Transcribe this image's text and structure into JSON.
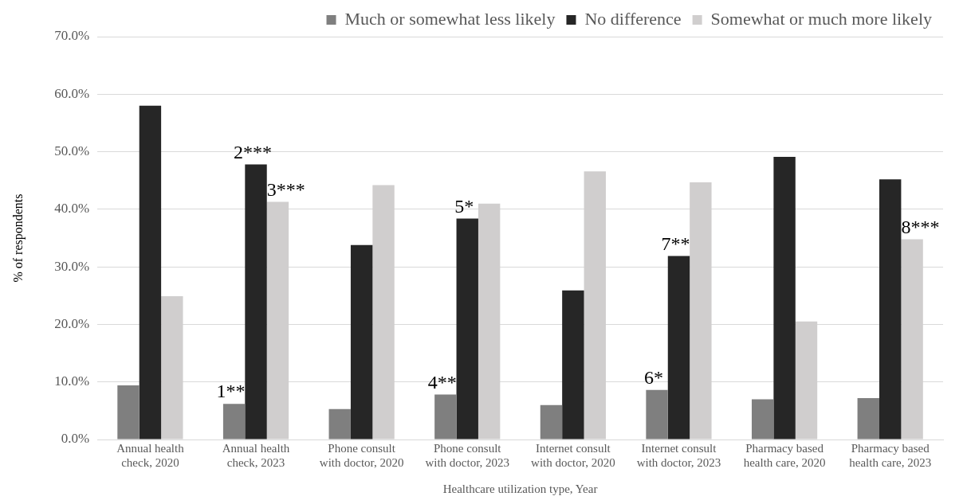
{
  "chart_data": {
    "type": "bar",
    "xlabel": "Healthcare utilization type, Year",
    "ylabel": "% of respondents",
    "categories": [
      "Annual health check, 2020",
      "Annual health check, 2023",
      "Phone consult with doctor, 2020",
      "Phone consult with doctor, 2023",
      "Internet consult with doctor, 2020",
      "Internet consult with doctor, 2023",
      "Pharmacy based health care, 2020",
      "Pharmacy based health care, 2023"
    ],
    "series": [
      {
        "name": "Much or somewhat less likely",
        "color": "#7f7f7f",
        "values": [
          9.4,
          6.2,
          5.3,
          7.8,
          6.0,
          8.6,
          7.0,
          7.2
        ]
      },
      {
        "name": "No difference",
        "color": "#262626",
        "values": [
          58.0,
          47.8,
          33.8,
          38.4,
          25.9,
          31.9,
          49.1,
          45.2
        ]
      },
      {
        "name": "Somewhat or much more likely",
        "color": "#d0cece",
        "values": [
          24.9,
          41.3,
          44.2,
          41.0,
          46.6,
          44.7,
          20.5,
          34.8
        ]
      }
    ],
    "ylim": [
      0,
      70
    ],
    "yticks": [
      {
        "value": 0,
        "label": "0.0%"
      },
      {
        "value": 10,
        "label": "10.0%"
      },
      {
        "value": 20,
        "label": "20.0%"
      },
      {
        "value": 30,
        "label": "30.0%"
      },
      {
        "value": 40,
        "label": "40.0%"
      },
      {
        "value": 50,
        "label": "50.0%"
      },
      {
        "value": 60,
        "label": "60.0%"
      },
      {
        "value": 70,
        "label": "70.0%"
      }
    ],
    "grid": "y",
    "legend": "top",
    "marker": "square",
    "annotations": [
      {
        "text": "1**",
        "y": 6.2
      },
      {
        "text": "2***",
        "y": 47.8
      },
      {
        "text": "3***",
        "y": 41.3
      },
      {
        "text": "4**",
        "y": 7.8
      },
      {
        "text": "5*",
        "y": 38.4
      },
      {
        "text": "6*",
        "y": 8.6
      },
      {
        "text": "7**",
        "y": 31.9
      },
      {
        "text": "8***",
        "y": 34.8
      }
    ]
  }
}
